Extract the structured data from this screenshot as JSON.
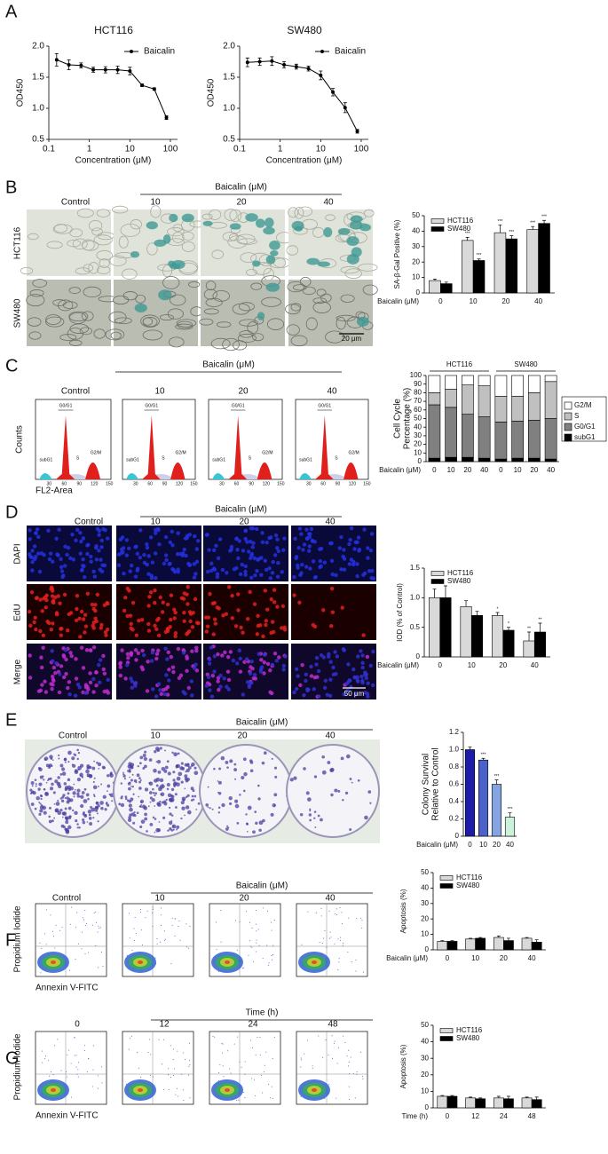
{
  "figure": {
    "A": {
      "letter": "A"
    },
    "B": {
      "letter": "B",
      "treatment": "Baicalin (μM)",
      "columns": [
        "Control",
        "10",
        "20",
        "40"
      ],
      "rows": [
        "HCT116",
        "SW480"
      ],
      "scale_bar": "20 μm"
    },
    "C": {
      "letter": "C",
      "treatment": "Baicalin (μM)",
      "columns": [
        "Control",
        "10",
        "20",
        "40"
      ],
      "y_axis": "Counts",
      "x_axis": "FL2-Area",
      "peaks": [
        "subG1",
        "G0/G1",
        "S",
        "G2/M"
      ],
      "x_ticks": [
        "30",
        "60",
        "90",
        "120",
        "150"
      ]
    },
    "D": {
      "letter": "D",
      "treatment": "Baicalin (μM)",
      "columns": [
        "Control",
        "10",
        "20",
        "40"
      ],
      "rows": [
        "DAPI",
        "EdU",
        "Merge"
      ],
      "scale_bar": "50 μm"
    },
    "E": {
      "letter": "E",
      "treatment": "Baicalin (μM)",
      "columns": [
        "Control",
        "10",
        "20",
        "40"
      ]
    },
    "F": {
      "letter": "F",
      "treatment": "Baicalin (μM)",
      "columns": [
        "Control",
        "10",
        "20",
        "40"
      ],
      "y_axis": "Propidium Iodide",
      "x_axis": "Annexin V-FITC"
    },
    "G": {
      "letter": "G",
      "treatment": "Time (h)",
      "columns": [
        "0",
        "12",
        "24",
        "48"
      ],
      "y_axis": "Propidium Iodide",
      "x_axis": "Annexin V-FITC"
    }
  },
  "chart_data": [
    {
      "type": "line",
      "title": "HCT116",
      "xlabel": "Concentration (μM)",
      "ylabel": "OD450",
      "log_x": true,
      "x": [
        0.156,
        0.3125,
        0.625,
        1.25,
        2.5,
        5,
        10,
        20,
        40,
        80
      ],
      "series": [
        {
          "name": "Baicalin",
          "color": "#000000",
          "values": [
            1.78,
            1.7,
            1.69,
            1.62,
            1.62,
            1.62,
            1.6,
            1.37,
            1.31,
            0.85
          ],
          "errors": [
            0.1,
            0.08,
            0.04,
            0.04,
            0.05,
            0.06,
            0.06,
            0.02,
            0.02,
            0.03
          ]
        }
      ],
      "xlim": [
        0.1,
        150
      ],
      "xticks": [
        0.1,
        1,
        10,
        100
      ],
      "ylim": [
        0.5,
        2.0
      ],
      "yticks": [
        0.5,
        {
          "value": 1,
          "label": "1.0"
        },
        1.5,
        {
          "value": 2,
          "label": "2.0"
        }
      ]
    },
    {
      "type": "line",
      "title": "SW480",
      "xlabel": "Concentration (μM)",
      "ylabel": "OD450",
      "log_x": true,
      "x": [
        0.156,
        0.3125,
        0.625,
        1.25,
        2.5,
        5,
        10,
        20,
        40,
        80
      ],
      "series": [
        {
          "name": "Baicalin",
          "color": "#000000",
          "values": [
            1.74,
            1.75,
            1.76,
            1.7,
            1.67,
            1.64,
            1.53,
            1.26,
            1.01,
            0.63
          ],
          "errors": [
            0.07,
            0.06,
            0.07,
            0.05,
            0.04,
            0.04,
            0.07,
            0.06,
            0.08,
            0.03
          ]
        }
      ],
      "xlim": [
        0.1,
        150
      ],
      "xticks": [
        0.1,
        1,
        10,
        100
      ],
      "ylim": [
        0.5,
        2.0
      ],
      "yticks": [
        0.5,
        {
          "value": 1,
          "label": "1.0"
        },
        1.5,
        {
          "value": 2,
          "label": "2.0"
        }
      ]
    },
    {
      "type": "bar",
      "xlabel": "Baicalin (μM)",
      "ylabel": "SA-β-Gal Positive (%)",
      "categories": [
        "0",
        "10",
        "20",
        "40"
      ],
      "series": [
        {
          "name": "HCT116",
          "color": "#d9d9d9",
          "values": [
            8,
            34,
            39,
            41
          ],
          "errors": [
            1,
            2,
            5,
            2
          ],
          "significance": [
            null,
            "***",
            "***",
            "***"
          ]
        },
        {
          "name": "SW480",
          "color": "#000000",
          "values": [
            6,
            21,
            35,
            45
          ],
          "errors": [
            1,
            1,
            2,
            2
          ],
          "significance": [
            null,
            "***",
            "***",
            "***"
          ]
        }
      ],
      "ylim": [
        0,
        50
      ],
      "yticks": [
        0,
        10,
        20,
        30,
        40,
        50
      ]
    },
    {
      "type": "stacked_bar",
      "xlabel": "Baicalin (μM)",
      "ylabel": [
        "Cell Cycle",
        "Percentage (%)"
      ],
      "groups": [
        "HCT116",
        "SW480"
      ],
      "categories": [
        "0",
        "10",
        "20",
        "40",
        "0",
        "10",
        "20",
        "40"
      ],
      "series": [
        {
          "name": "subG1",
          "color": "#000000",
          "values": [
            4,
            5,
            5,
            4,
            3,
            4,
            4,
            3
          ]
        },
        {
          "name": "G0/G1",
          "color": "#808080",
          "values": [
            62,
            58,
            50,
            48,
            43,
            43,
            44,
            47
          ]
        },
        {
          "name": "S",
          "color": "#c0c0c0",
          "values": [
            14,
            21,
            34,
            36,
            30,
            29,
            32,
            43
          ]
        },
        {
          "name": "G2/M",
          "color": "#ffffff",
          "values": [
            20,
            16,
            11,
            12,
            24,
            24,
            20,
            7
          ]
        }
      ],
      "ylim": [
        0,
        100
      ],
      "yticks": [
        0,
        10,
        20,
        30,
        40,
        50,
        60,
        70,
        80,
        90,
        100
      ]
    },
    {
      "type": "bar",
      "xlabel": "Baicalin (μM)",
      "ylabel": "IOD (% of Control)",
      "categories": [
        "0",
        "10",
        "20",
        "40"
      ],
      "series": [
        {
          "name": "HCT116",
          "color": "#d9d9d9",
          "values": [
            1.0,
            0.85,
            0.7,
            0.27
          ],
          "errors": [
            0.15,
            0.1,
            0.05,
            0.15
          ],
          "significance": [
            null,
            null,
            "*",
            "**"
          ]
        },
        {
          "name": "SW480",
          "color": "#000000",
          "values": [
            1.0,
            0.7,
            0.45,
            0.42
          ],
          "errors": [
            0.2,
            0.07,
            0.05,
            0.15
          ],
          "significance": [
            null,
            null,
            "*",
            "**"
          ]
        }
      ],
      "ylim": [
        0,
        1.5
      ],
      "yticks": [
        0,
        0.5,
        {
          "value": 1,
          "label": "1.0"
        },
        1.5
      ]
    },
    {
      "type": "bar",
      "xlabel": "Baicalin (μM)",
      "ylabel": [
        "Colony Survival",
        "Relative to Control"
      ],
      "categories": [
        "0",
        "10",
        "20",
        "40"
      ],
      "values": [
        1.0,
        0.88,
        0.6,
        0.22
      ],
      "errors": [
        0.03,
        0.02,
        0.05,
        0.05
      ],
      "significance": [
        null,
        "***",
        "***",
        "***"
      ],
      "colors": [
        "#1c1ca8",
        "#4d62c8",
        "#86a4e0",
        "#cdf2dc"
      ],
      "ylim": [
        0,
        1.2
      ],
      "yticks": [
        0,
        0.2,
        0.4,
        0.6,
        0.8,
        {
          "value": 1,
          "label": "1.0"
        },
        1.2
      ]
    },
    {
      "type": "bar",
      "xlabel": "Baicalin (μM)",
      "ylabel": "Apoptosis (%)",
      "categories": [
        "0",
        "10",
        "20",
        "40"
      ],
      "series": [
        {
          "name": "HCT116",
          "color": "#d9d9d9",
          "values": [
            5.5,
            7,
            8,
            7.5
          ],
          "errors": [
            0.5,
            0.5,
            1,
            0.5
          ]
        },
        {
          "name": "SW480",
          "color": "#000000",
          "values": [
            5.5,
            7.5,
            6,
            5
          ],
          "errors": [
            0.5,
            0.5,
            1.5,
            1.5
          ]
        }
      ],
      "ylim": [
        0,
        50
      ],
      "yticks": [
        0,
        10,
        20,
        30,
        40,
        50
      ]
    },
    {
      "type": "bar",
      "xlabel": "Time (h)",
      "ylabel": "Apoptosis (%)",
      "categories": [
        "0",
        "12",
        "24",
        "48"
      ],
      "series": [
        {
          "name": "HCT116",
          "color": "#d9d9d9",
          "values": [
            7,
            6,
            6,
            6
          ],
          "errors": [
            0.5,
            0.5,
            1,
            0.5
          ]
        },
        {
          "name": "SW480",
          "color": "#000000",
          "values": [
            7,
            5.5,
            5.5,
            5
          ],
          "errors": [
            0.5,
            0.5,
            1.5,
            1.5
          ]
        }
      ],
      "ylim": [
        0,
        50
      ],
      "yticks": [
        0,
        10,
        20,
        30,
        40,
        50
      ]
    }
  ]
}
